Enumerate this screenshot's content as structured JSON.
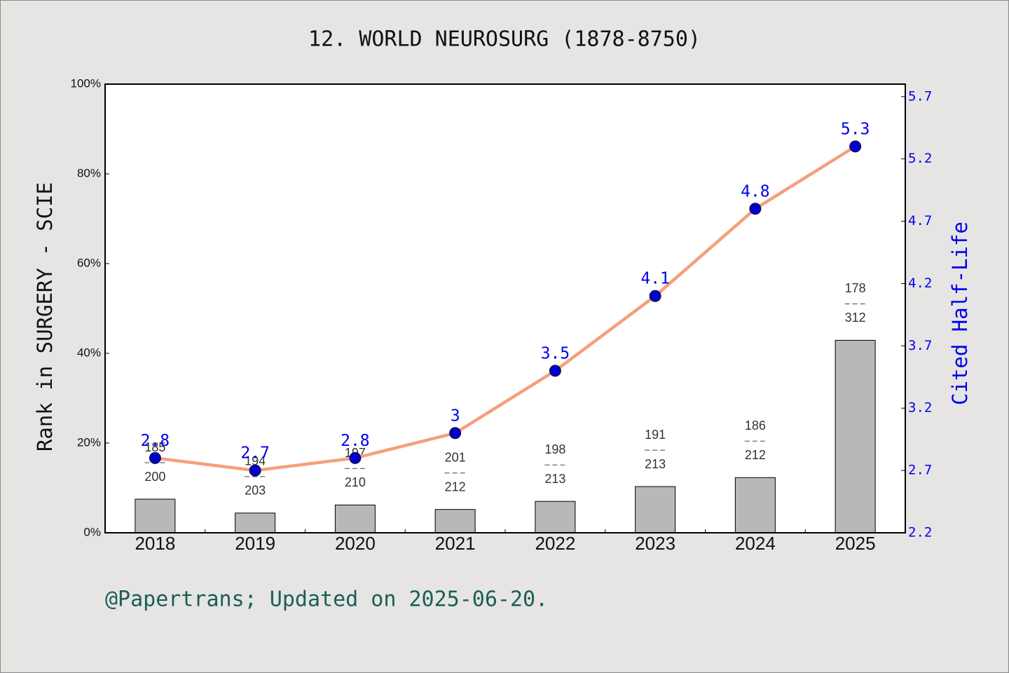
{
  "chart_data": {
    "type": "bar",
    "title": "12. WORLD NEUROSURG (1878-8750)",
    "ylabel": "Rank in SURGERY - SCIE",
    "y2label": "Cited Half-Life",
    "annotation": "@Papertrans; Updated on 2025-06-20.",
    "categories": [
      "2018",
      "2019",
      "2020",
      "2021",
      "2022",
      "2023",
      "2024",
      "2025"
    ],
    "series": [
      {
        "type": "bar",
        "color": "#b8b8b9",
        "values": [
          7.5,
          4.4,
          6.2,
          5.2,
          7.0,
          10.3,
          12.3,
          42.9
        ],
        "ranks": [
          185,
          194,
          197,
          201,
          198,
          191,
          186,
          178
        ],
        "totals": [
          200,
          203,
          210,
          212,
          213,
          213,
          212,
          312
        ]
      },
      {
        "type": "line",
        "axis": "y2",
        "color": "#f4a07c",
        "marker_color": "#0000cc",
        "values": [
          2.8,
          2.7,
          2.8,
          3,
          3.5,
          4.1,
          4.8,
          5.3
        ]
      }
    ],
    "ylim": [
      0,
      100
    ],
    "yticks": [
      {
        "value": 0,
        "label": "0%"
      },
      {
        "value": 20,
        "label": "20%"
      },
      {
        "value": 40,
        "label": "40%"
      },
      {
        "value": 60,
        "label": "60%"
      },
      {
        "value": 80,
        "label": "80%"
      },
      {
        "value": 100,
        "label": "100%"
      }
    ],
    "y2lim": [
      2.2,
      5.8
    ],
    "y2ticks": [
      2.2,
      2.7,
      3.2,
      3.7,
      4.2,
      4.7,
      5.2,
      5.7
    ],
    "y2color": "#0000ee",
    "annotation_color": "#1b5e58"
  }
}
